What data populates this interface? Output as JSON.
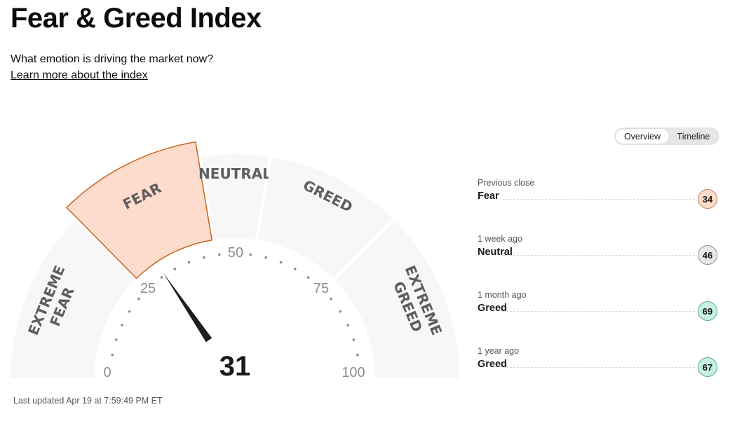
{
  "header": {
    "title": "Fear & Greed Index",
    "subtitle": "What emotion is driving the market now?",
    "learn_link": "Learn more about the index"
  },
  "view_toggle": {
    "options": [
      "Overview",
      "Timeline"
    ],
    "active": "Overview"
  },
  "gauge": {
    "segments": [
      {
        "label_line1": "EXTREME",
        "label_line2": "FEAR",
        "range": [
          0,
          25
        ]
      },
      {
        "label_line1": "FEAR",
        "label_line2": "",
        "range": [
          25,
          45
        ]
      },
      {
        "label_line1": "NEUTRAL",
        "label_line2": "",
        "range": [
          45,
          55
        ]
      },
      {
        "label_line1": "GREED",
        "label_line2": "",
        "range": [
          55,
          75
        ]
      },
      {
        "label_line1": "EXTREME",
        "label_line2": "GREED",
        "range": [
          75,
          100
        ]
      }
    ],
    "ticks": [
      "0",
      "25",
      "50",
      "75",
      "100"
    ],
    "score": "31",
    "score_value": 31,
    "active_segment": "FEAR",
    "colors": {
      "segment": "#f7f7f7",
      "active_fill": "#fddbcd",
      "active_stroke": "#c8671e",
      "needle": "#1f1f1f"
    }
  },
  "last_updated": "Last updated Apr 19 at 7:59:49 PM ET",
  "history": [
    {
      "when": "Previous close",
      "rating": "Fear",
      "value": "34",
      "tone": "fear"
    },
    {
      "when": "1 week ago",
      "rating": "Neutral",
      "value": "46",
      "tone": "neutral"
    },
    {
      "when": "1 month ago",
      "rating": "Greed",
      "value": "69",
      "tone": "greed"
    },
    {
      "when": "1 year ago",
      "rating": "Greed",
      "value": "67",
      "tone": "greed"
    }
  ]
}
